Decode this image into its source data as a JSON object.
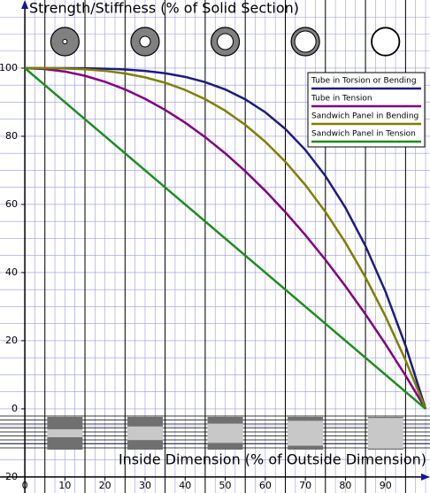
{
  "chart_data": {
    "type": "line",
    "title": "Strength/Stiffness (% of Solid Section)",
    "x_label": "Inside Dimension (% of Outside Dimension)",
    "x": [
      0,
      5,
      10,
      15,
      20,
      25,
      30,
      35,
      40,
      45,
      50,
      55,
      60,
      65,
      70,
      75,
      80,
      85,
      90,
      95,
      100
    ],
    "series": [
      {
        "name": "Tube in Torsion or Bending",
        "color": "#1c1c7e",
        "values": [
          100,
          100,
          99.99,
          99.95,
          99.84,
          99.61,
          99.19,
          98.5,
          97.44,
          95.9,
          93.75,
          90.85,
          87.04,
          82.15,
          75.99,
          68.36,
          59.04,
          47.8,
          34.39,
          18.55,
          0
        ]
      },
      {
        "name": "Tube in Tension",
        "color": "#800080",
        "values": [
          100,
          99.75,
          99,
          97.75,
          96,
          93.75,
          91,
          87.75,
          84,
          79.75,
          75,
          69.75,
          64,
          57.75,
          51,
          43.75,
          36,
          27.75,
          19,
          9.75,
          0
        ]
      },
      {
        "name": "Sandwich Panel in Bending",
        "color": "#7f7f00",
        "values": [
          100,
          99.99,
          99.9,
          99.66,
          99.2,
          98.44,
          97.3,
          95.71,
          93.6,
          90.89,
          87.5,
          83.36,
          78.4,
          72.54,
          65.7,
          57.81,
          48.8,
          38.59,
          27.1,
          14.26,
          0
        ]
      },
      {
        "name": "Sandwich Panel in Tension",
        "color": "#1e8c1e",
        "values": [
          100,
          95,
          90,
          85,
          80,
          75,
          70,
          65,
          60,
          55,
          50,
          45,
          40,
          35,
          30,
          25,
          20,
          15,
          10,
          5,
          0
        ]
      }
    ],
    "xlim": [
      -6.2,
      101.1
    ],
    "ylim": [
      -24.7,
      120
    ],
    "xticks": [
      0,
      10,
      20,
      30,
      40,
      50,
      60,
      70,
      80,
      90
    ],
    "yticks": [
      -20,
      0,
      20,
      40,
      60,
      80,
      100
    ],
    "grid": true,
    "legend": "upper right"
  }
}
